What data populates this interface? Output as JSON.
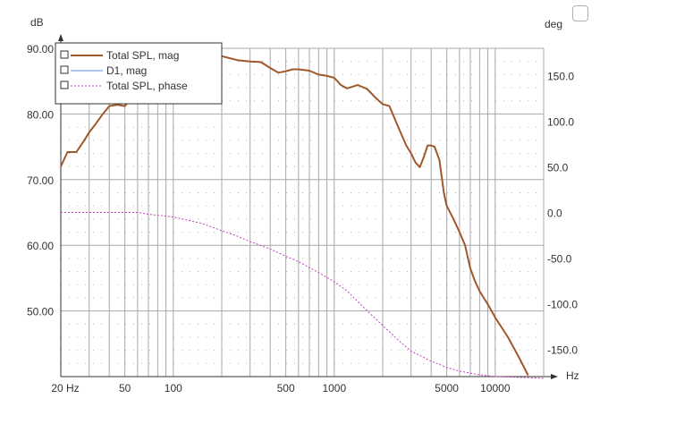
{
  "chart_data": {
    "type": "line",
    "x_scale": "log",
    "xlim": [
      20,
      20000
    ],
    "x_ticks": [
      20,
      50,
      100,
      500,
      1000,
      5000,
      10000
    ],
    "x_tick_labels": [
      "20 Hz",
      "50",
      "100",
      "500",
      "1000",
      "5000",
      "10000"
    ],
    "xlabel": "Hz",
    "ylabel_left": "dB",
    "ylim_left": [
      40,
      90
    ],
    "y_ticks_left": [
      50,
      60,
      70,
      80,
      90
    ],
    "y_tick_labels_left": [
      "50.00",
      "60.00",
      "70.00",
      "80.00",
      "90.00"
    ],
    "ylabel_right": "deg",
    "ylim_right": [
      -180,
      180
    ],
    "y_ticks_right": [
      -150,
      -100,
      -50,
      0,
      50,
      100,
      150
    ],
    "y_tick_labels_right": [
      "-150.0",
      "-100.0",
      "-50.0",
      "0.0",
      "50.0",
      "100.0",
      "150.0"
    ],
    "grid": true,
    "legend_position": "top-left",
    "series": [
      {
        "name": "Total SPL, mag",
        "axis": "left",
        "color": "#a0582a",
        "style": "solid",
        "x": [
          20,
          22,
          25,
          28,
          30,
          33,
          36,
          40,
          45,
          50,
          55,
          60,
          70,
          80,
          90,
          100,
          120,
          150,
          200,
          250,
          300,
          350,
          400,
          450,
          500,
          550,
          600,
          700,
          800,
          900,
          1000,
          1100,
          1200,
          1400,
          1600,
          1800,
          2000,
          2200,
          2500,
          2800,
          3000,
          3200,
          3400,
          3600,
          3800,
          4000,
          4200,
          4500,
          4800,
          5000,
          5500,
          6000,
          6500,
          7000,
          7500,
          8000,
          9000,
          10000,
          12000,
          14000,
          16000
        ],
        "y": [
          72.0,
          74.2,
          74.2,
          76.0,
          77.2,
          78.5,
          79.8,
          81.2,
          81.4,
          81.2,
          82.5,
          84.0,
          86.5,
          88.0,
          88.8,
          89.2,
          89.5,
          89.4,
          88.8,
          88.2,
          88.0,
          87.9,
          87.0,
          86.3,
          86.5,
          86.8,
          86.8,
          86.6,
          86.0,
          85.8,
          85.5,
          84.4,
          83.9,
          84.4,
          83.8,
          82.5,
          81.5,
          81.2,
          78.0,
          75.2,
          74.0,
          72.6,
          71.9,
          73.4,
          75.2,
          75.2,
          75.0,
          73.0,
          68.0,
          66.0,
          64.0,
          62.0,
          60.0,
          56.5,
          54.5,
          53.0,
          51.0,
          49.0,
          46.0,
          43.0,
          40.2
        ]
      },
      {
        "name": "D1, mag",
        "axis": "left",
        "color": "#5b8fd6",
        "style": "solid",
        "x": [],
        "y": []
      },
      {
        "name": "Total SPL, phase",
        "axis": "right",
        "color": "#c040c0",
        "style": "dotted",
        "x": [
          20,
          30,
          40,
          50,
          60,
          70,
          80,
          100,
          120,
          150,
          200,
          250,
          300,
          400,
          500,
          600,
          800,
          1000,
          1200,
          1500,
          2000,
          2500,
          3000,
          4000,
          5000,
          6000,
          8000,
          10000,
          15000,
          20000
        ],
        "y": [
          0,
          0,
          0,
          0,
          0,
          -2,
          -3,
          -5,
          -8,
          -12,
          -20,
          -26,
          -32,
          -40,
          -48,
          -54,
          -66,
          -76,
          -86,
          -103,
          -124,
          -140,
          -152,
          -163,
          -170,
          -174,
          -178,
          -180,
          -181,
          -182
        ]
      }
    ]
  }
}
